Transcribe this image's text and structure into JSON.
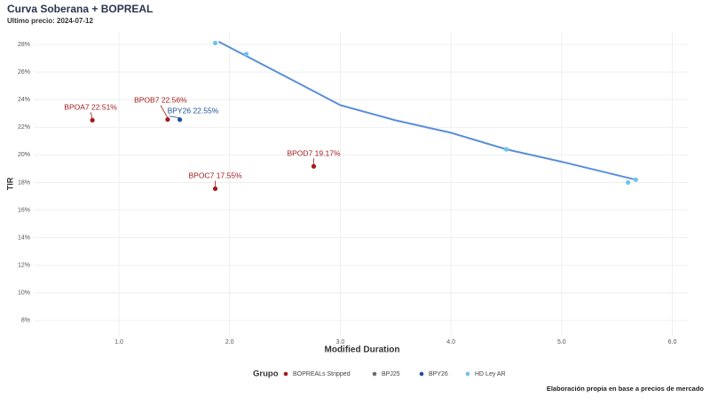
{
  "chart_data": {
    "type": "scatter",
    "title": "Curva Soberana + BOPREAL",
    "subtitle": "Ultimo precio: 2024-07-12",
    "x_label": "Modified Duration",
    "y_label": "TIR",
    "legend_title": "Grupo",
    "caption": "Elaboración propia en base a precios de mercado",
    "xlim": [
      0.23,
      6.14
    ],
    "ylim": [
      6.9,
      28.9
    ],
    "xticks": [
      {
        "value": 1,
        "label": "1.0"
      },
      {
        "value": 2,
        "label": "2.0"
      },
      {
        "value": 3,
        "label": "3.0"
      },
      {
        "value": 4,
        "label": "4.0"
      },
      {
        "value": 5,
        "label": "5.0"
      },
      {
        "value": 6,
        "label": "6.0"
      }
    ],
    "yticks": [
      {
        "value": 8,
        "label": "8%"
      },
      {
        "value": 10,
        "label": "10%"
      },
      {
        "value": 12,
        "label": "12%"
      },
      {
        "value": 14,
        "label": "14%"
      },
      {
        "value": 16,
        "label": "16%"
      },
      {
        "value": 18,
        "label": "18%"
      },
      {
        "value": 20,
        "label": "20%"
      },
      {
        "value": 22,
        "label": "22%"
      },
      {
        "value": 24,
        "label": "24%"
      },
      {
        "value": 26,
        "label": "26%"
      },
      {
        "value": 28,
        "label": "28%"
      }
    ],
    "grid": true,
    "legend_position": "bottom",
    "series": [
      {
        "name": "BOPREALs Stripped",
        "color": "#a31a1a",
        "x": [
          0.76,
          1.44,
          1.87,
          2.76
        ],
        "values": [
          22.51,
          22.56,
          17.55,
          19.17
        ],
        "labels": [
          "BPOA7",
          "BPOB7",
          "BPOC7",
          "BPOD7"
        ],
        "value_labels": [
          "22.51%",
          "22.56%",
          "17.55%",
          "19.17%"
        ]
      },
      {
        "name": "BPJ25",
        "color": "#6b6b6b",
        "x": [],
        "values": []
      },
      {
        "name": "BPY26",
        "color": "#1f4e9c",
        "x": [
          1.55
        ],
        "values": [
          22.55
        ],
        "labels": [
          "BPY26"
        ],
        "value_labels": [
          "22.55%"
        ]
      },
      {
        "name": "HD Ley AR",
        "color": "#6ec3ee",
        "x": [
          1.87,
          2.15,
          4.5,
          5.6,
          5.67
        ],
        "values": [
          28.1,
          27.3,
          20.4,
          18.0,
          18.2
        ]
      }
    ],
    "fit": {
      "color": "#5b8fd8",
      "x": [
        1.9,
        2.5,
        3.0,
        3.5,
        4.0,
        4.5,
        5.0,
        5.67
      ],
      "values": [
        28.2,
        25.7,
        23.6,
        22.5,
        21.6,
        20.4,
        19.5,
        18.2
      ]
    }
  }
}
